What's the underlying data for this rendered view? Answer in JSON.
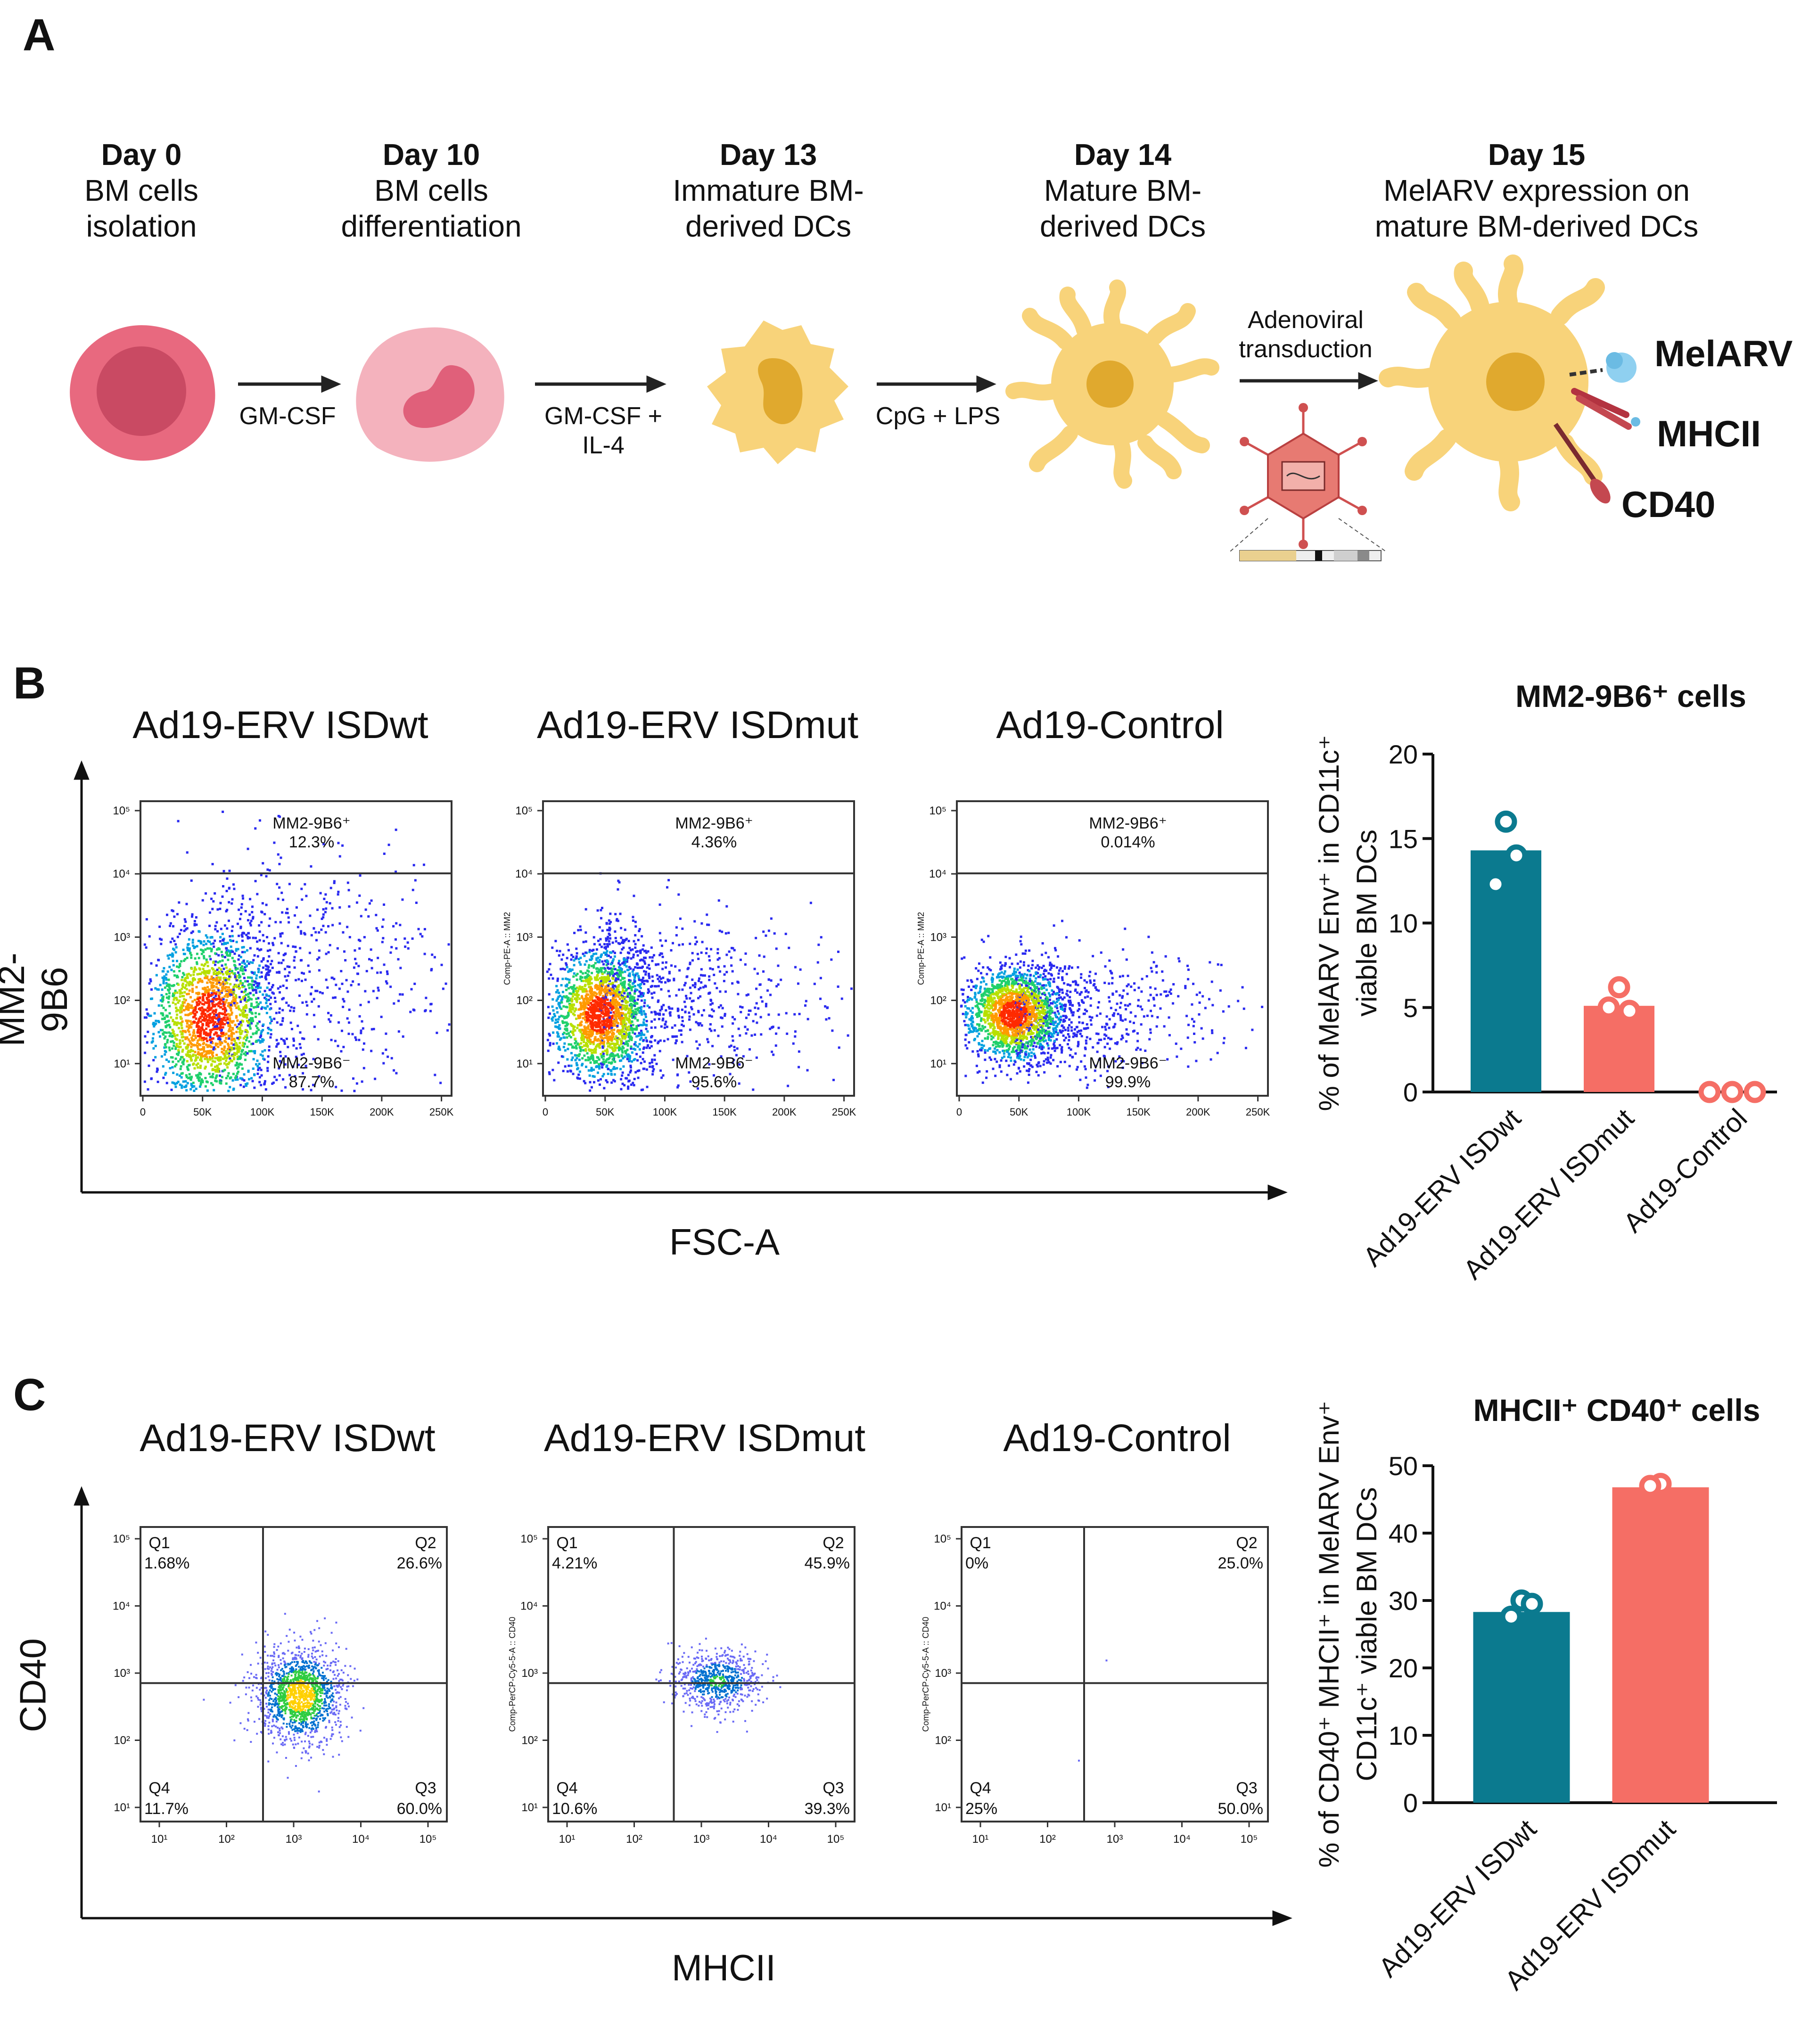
{
  "panelA": {
    "label": "A",
    "steps": [
      {
        "day": "Day 0",
        "desc1": "BM cells",
        "desc2": "isolation"
      },
      {
        "day": "Day 10",
        "desc1": "BM cells",
        "desc2": "differentiation"
      },
      {
        "day": "Day 13",
        "desc1": "Immature BM-",
        "desc2": "derived DCs"
      },
      {
        "day": "Day 14",
        "desc1": "Mature BM-",
        "desc2": "derived DCs"
      },
      {
        "day": "Day 15",
        "desc1": "MelARV expression on",
        "desc2": "mature BM-derived DCs"
      }
    ],
    "reagents": {
      "r1": "GM-CSF",
      "r2a": "GM-CSF +",
      "r2b": "IL-4",
      "r3": "CpG + LPS",
      "r4a": "Adenoviral",
      "r4b": "transduction"
    },
    "markers": {
      "m1": "MelARV",
      "m2": "MHCII",
      "m3": "CD40"
    },
    "colors": {
      "cell_pink": "#e8697f",
      "cell_light": "#f4b2bd",
      "dc_yellow": "#f8d37a",
      "nucleus": "#e0a92e",
      "virus": "#cf5050"
    }
  },
  "panelB": {
    "label": "B",
    "flow_titles": [
      "Ad19-ERV ISDwt",
      "Ad19-ERV ISDmut",
      "Ad19-Control"
    ],
    "y_axis": "MM2-9B6",
    "x_axis": "FSC-A",
    "channel_label": "Comp-PE-A :: MM2",
    "x_ticks": [
      "0",
      "50K",
      "100K",
      "150K",
      "200K",
      "250K"
    ],
    "y_ticks": [
      "10⁵",
      "10⁴",
      "10³",
      "10²",
      "10¹"
    ],
    "gates": [
      {
        "pos_label": "MM2-9B6⁺",
        "pos": "12.3%",
        "neg_label": "MM2-9B6⁻",
        "neg": "87.7%"
      },
      {
        "pos_label": "MM2-9B6⁺",
        "pos": "4.36%",
        "neg_label": "MM2-9B6⁻",
        "neg": "95.6%"
      },
      {
        "pos_label": "MM2-9B6⁺",
        "pos": "0.014%",
        "neg_label": "MM2-9B6⁻",
        "neg": "99.9%"
      }
    ]
  },
  "panelC": {
    "label": "C",
    "flow_titles": [
      "Ad19-ERV ISDwt",
      "Ad19-ERV ISDmut",
      "Ad19-Control"
    ],
    "y_axis": "CD40",
    "x_axis": "MHCII",
    "channel_label": "Comp-PerCP-Cy5-5-A :: CD40",
    "x_ticks": [
      "10¹",
      "10²",
      "10³",
      "10⁴",
      "10⁵"
    ],
    "y_ticks": [
      "10⁵",
      "10⁴",
      "10³",
      "10²",
      "10¹"
    ],
    "quadrants": [
      {
        "q1": "Q1",
        "q1v": "1.68%",
        "q2": "Q2",
        "q2v": "26.6%",
        "q3": "Q3",
        "q3v": "60.0%",
        "q4": "Q4",
        "q4v": "11.7%"
      },
      {
        "q1": "Q1",
        "q1v": "4.21%",
        "q2": "Q2",
        "q2v": "45.9%",
        "q3": "Q3",
        "q3v": "39.3%",
        "q4": "Q4",
        "q4v": "10.6%"
      },
      {
        "q1": "Q1",
        "q1v": "0%",
        "q2": "Q2",
        "q2v": "25.0%",
        "q3": "Q3",
        "q3v": "50.0%",
        "q4": "Q4",
        "q4v": "25%"
      }
    ]
  },
  "chart_data": [
    {
      "type": "bar",
      "title": "MM2-9B6⁺ cells",
      "ylabel_line1": "% of MelARV Env⁺ in CD11c⁺",
      "ylabel_line2": "viable BM DCs",
      "categories": [
        "Ad19-ERV ISDwt",
        "Ad19-ERV ISDmut",
        "Ad19-Control"
      ],
      "values": [
        14.3,
        5.1,
        0.0
      ],
      "points": [
        [
          16.0,
          14.0,
          12.3
        ],
        [
          6.2,
          4.8,
          5.0
        ],
        [
          0.0,
          0.0,
          0.0
        ]
      ],
      "ylim": [
        0,
        20
      ],
      "yticks": [
        0,
        5,
        10,
        15,
        20
      ],
      "colors": [
        "#0b7a8f",
        "#f56e65",
        "#f56e65"
      ]
    },
    {
      "type": "bar",
      "title": "MHCII⁺ CD40⁺ cells",
      "ylabel_line1": "% of CD40⁺ MHCII⁺ in MelARV Env⁺",
      "ylabel_line2": "CD11c⁺ viable BM DCs",
      "categories": [
        "Ad19-ERV ISDwt",
        "Ad19-ERV ISDmut"
      ],
      "values": [
        28.3,
        46.8
      ],
      "points": [
        [
          30.0,
          29.5,
          27.6
        ],
        [
          46.5,
          47.3,
          47.0
        ]
      ],
      "ylim": [
        0,
        50
      ],
      "yticks": [
        0,
        10,
        20,
        30,
        40,
        50
      ],
      "colors": [
        "#0b7a8f",
        "#f56e65"
      ]
    }
  ]
}
